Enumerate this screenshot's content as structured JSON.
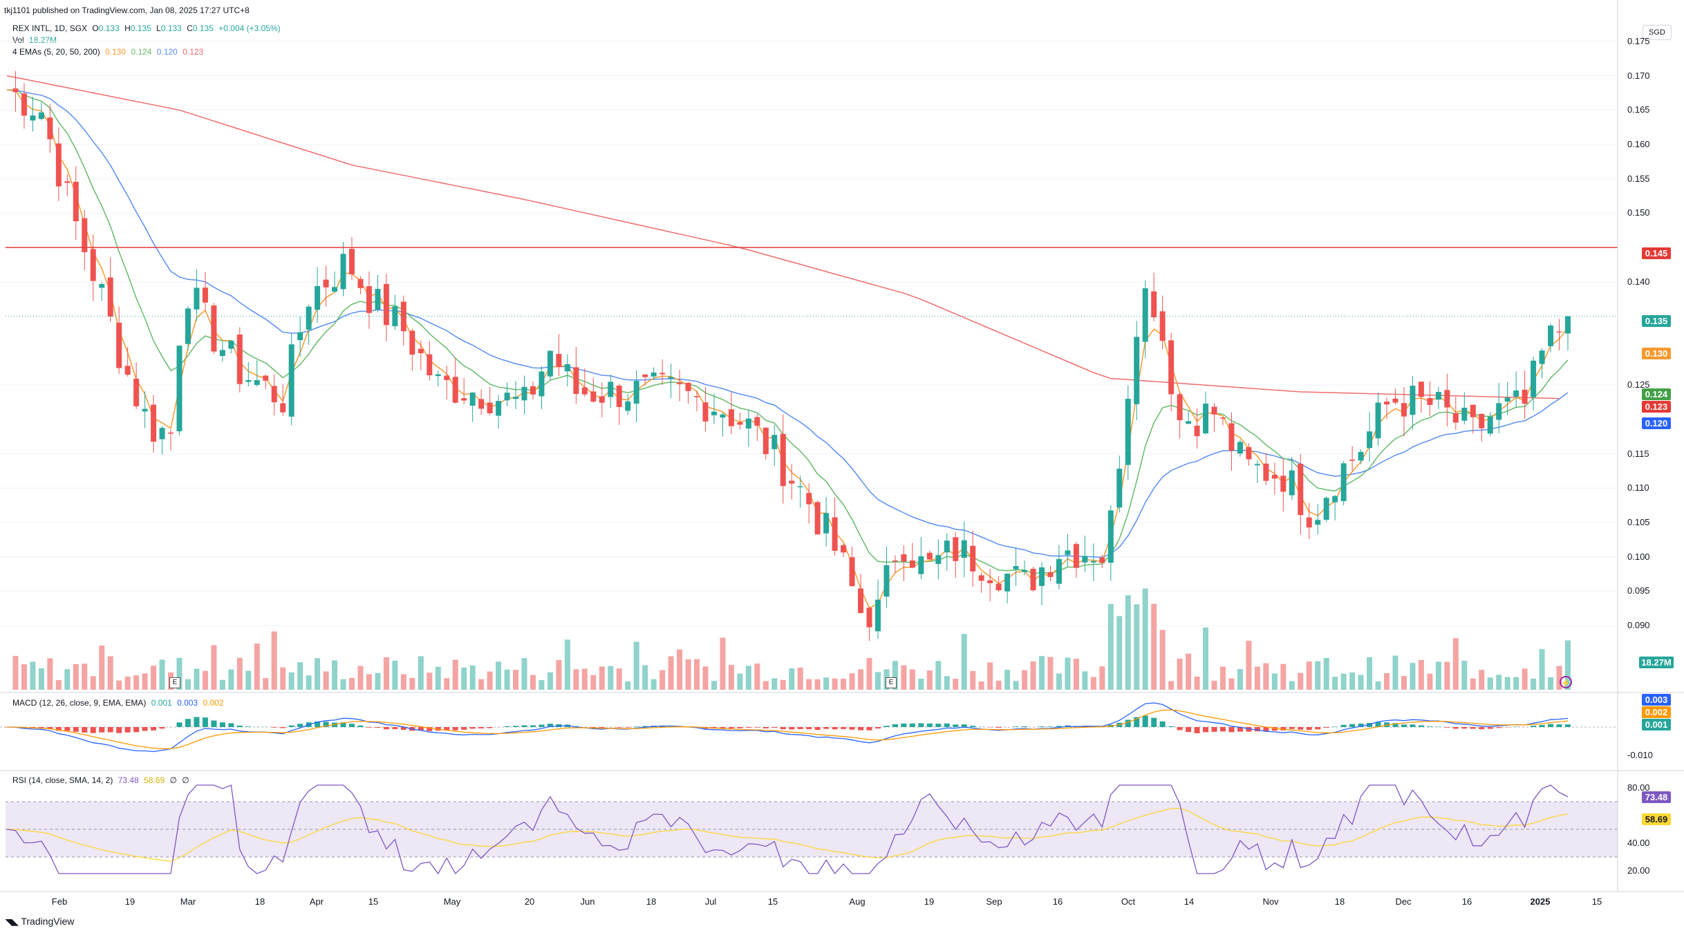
{
  "header": {
    "published": "tkj1101 published on TradingView.com, Jan 08, 2025 17:27 UTC+8",
    "symbol": "REX INTL, 1D, SGX",
    "o_label": "O",
    "o": "0.133",
    "h_label": "H",
    "h": "0.135",
    "l_label": "L",
    "l": "0.133",
    "c_label": "C",
    "c": "0.135",
    "change": "+0.004 (+3.05%)",
    "vol_label": "Vol",
    "vol": "18.27M",
    "ema_label": "4 EMAs (5, 20, 50, 200)",
    "ema5": "0.130",
    "ema20": "0.124",
    "ema50": "0.120",
    "ema200": "0.123",
    "macd_label": "MACD (12, 26, close, 9, EMA, EMA)",
    "macd": "0.001",
    "macd_signal": "0.003",
    "macd_hist": "0.002",
    "rsi_label": "RSI (14, close, SMA, 14, 2)",
    "rsi": "73.48",
    "rsi_sma": "58.69",
    "rsi_x1": "∅",
    "rsi_x2": "∅"
  },
  "currency": "SGD",
  "footer_brand": "TradingView",
  "price_axis": [
    "0.175",
    "0.170",
    "0.165",
    "0.160",
    "0.155",
    "0.150",
    "0.140",
    "0.125",
    "0.115",
    "0.110",
    "0.105",
    "0.100",
    "0.095",
    "0.090"
  ],
  "macd_axis": [
    "-0.010"
  ],
  "rsi_axis": [
    "80.00",
    "40.00",
    "20.00"
  ],
  "badges": {
    "resistance": "0.145",
    "last": "0.135",
    "ema5": "0.130",
    "ema20": "0.124",
    "ema200": "0.123",
    "ema50": "0.120",
    "volume": "18.27M",
    "macd_a": "0.003",
    "macd_b": "0.002",
    "macd_c": "0.001",
    "rsi": "73.48",
    "rsi_sma": "58.69"
  },
  "x_labels": [
    "Feb",
    "19",
    "Mar",
    "18",
    "Apr",
    "15",
    "May",
    "20",
    "Jun",
    "18",
    "Jul",
    "15",
    "Aug",
    "19",
    "Sep",
    "16",
    "Oct",
    "14",
    "Nov",
    "18",
    "Dec",
    "16",
    "2025",
    "15"
  ],
  "colors": {
    "up": "#26a69a",
    "down": "#ef5350",
    "vol_up": "#8fd3cb",
    "vol_down": "#f4a5a3",
    "ema5": "#f59a2f",
    "ema20": "#66bb6a",
    "ema50": "#5b8ff0",
    "ema200": "#ef6c6c",
    "resistance": "#e53935",
    "rsi": "#7e57c2",
    "rsi_sma": "#fdd835",
    "macd": "#2962ff",
    "signal": "#ff9800"
  },
  "chart_data": {
    "type": "candlestick",
    "title": "REX INTL, 1D, SGX",
    "ylim": [
      0.088,
      0.178
    ],
    "resistance": 0.145,
    "last_close": 0.135,
    "anchors": [
      {
        "d": 0,
        "p": 0.168
      },
      {
        "d": 8,
        "p": 0.165
      },
      {
        "d": 15,
        "p": 0.15
      },
      {
        "d": 22,
        "p": 0.138
      },
      {
        "d": 27,
        "p": 0.128
      },
      {
        "d": 33,
        "p": 0.119
      },
      {
        "d": 38,
        "p": 0.118
      },
      {
        "d": 41,
        "p": 0.14
      },
      {
        "d": 47,
        "p": 0.133
      },
      {
        "d": 54,
        "p": 0.127
      },
      {
        "d": 64,
        "p": 0.123
      },
      {
        "d": 70,
        "p": 0.138
      },
      {
        "d": 79,
        "p": 0.143
      },
      {
        "d": 85,
        "p": 0.137
      },
      {
        "d": 92,
        "p": 0.133
      },
      {
        "d": 100,
        "p": 0.125
      },
      {
        "d": 110,
        "p": 0.124
      },
      {
        "d": 120,
        "p": 0.122
      },
      {
        "d": 126,
        "p": 0.13
      },
      {
        "d": 132,
        "p": 0.124
      },
      {
        "d": 142,
        "p": 0.124
      },
      {
        "d": 154,
        "p": 0.124
      },
      {
        "d": 165,
        "p": 0.122
      },
      {
        "d": 172,
        "p": 0.119
      },
      {
        "d": 178,
        "p": 0.115
      },
      {
        "d": 186,
        "p": 0.108
      },
      {
        "d": 193,
        "p": 0.1
      },
      {
        "d": 198,
        "p": 0.092
      },
      {
        "d": 202,
        "p": 0.092
      },
      {
        "d": 207,
        "p": 0.103
      },
      {
        "d": 213,
        "p": 0.098
      },
      {
        "d": 220,
        "p": 0.101
      },
      {
        "d": 227,
        "p": 0.099
      },
      {
        "d": 236,
        "p": 0.096
      },
      {
        "d": 244,
        "p": 0.101
      },
      {
        "d": 252,
        "p": 0.101
      },
      {
        "d": 255,
        "p": 0.1
      },
      {
        "d": 258,
        "p": 0.115
      },
      {
        "d": 262,
        "p": 0.135
      },
      {
        "d": 265,
        "p": 0.14
      },
      {
        "d": 268,
        "p": 0.132
      },
      {
        "d": 272,
        "p": 0.12
      },
      {
        "d": 280,
        "p": 0.121
      },
      {
        "d": 287,
        "p": 0.113
      },
      {
        "d": 296,
        "p": 0.112
      },
      {
        "d": 303,
        "p": 0.106
      },
      {
        "d": 307,
        "p": 0.111
      },
      {
        "d": 313,
        "p": 0.115
      },
      {
        "d": 321,
        "p": 0.123
      },
      {
        "d": 331,
        "p": 0.122
      },
      {
        "d": 340,
        "p": 0.118
      },
      {
        "d": 345,
        "p": 0.121
      },
      {
        "d": 352,
        "p": 0.122
      },
      {
        "d": 357,
        "p": 0.131
      },
      {
        "d": 360,
        "p": 0.133
      },
      {
        "d": 362,
        "p": 0.135
      }
    ],
    "ema200": [
      {
        "d": 0,
        "p": 0.17
      },
      {
        "d": 40,
        "p": 0.165
      },
      {
        "d": 80,
        "p": 0.157
      },
      {
        "d": 120,
        "p": 0.152
      },
      {
        "d": 170,
        "p": 0.145
      },
      {
        "d": 210,
        "p": 0.138
      },
      {
        "d": 255,
        "p": 0.126
      },
      {
        "d": 300,
        "p": 0.124
      },
      {
        "d": 362,
        "p": 0.123
      }
    ],
    "rsi_levels": [
      70,
      50,
      30
    ],
    "rsi_ylim": [
      15,
      85
    ]
  }
}
